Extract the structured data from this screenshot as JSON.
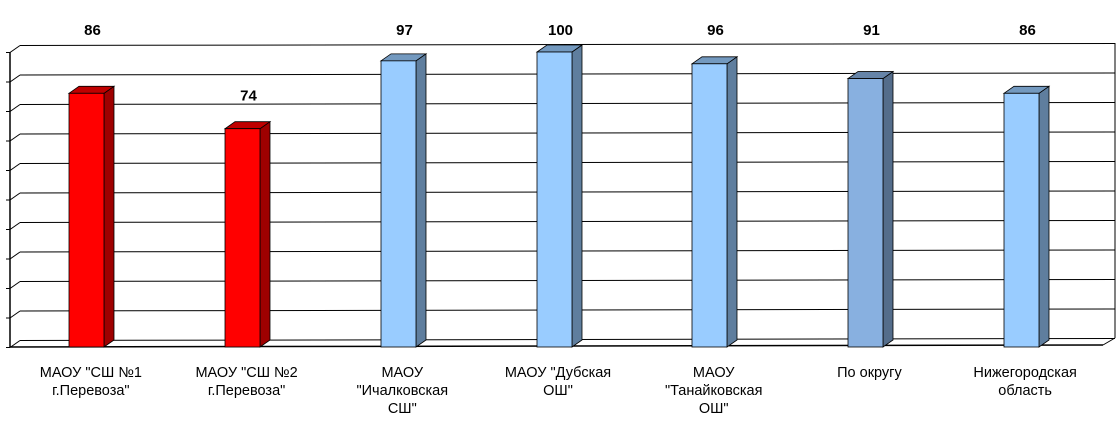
{
  "chart_data": {
    "type": "bar",
    "categories": [
      [
        "МАОУ \"СШ №1",
        "г.Перевоза\""
      ],
      [
        "МАОУ \"СШ №2",
        "г.Перевоза\""
      ],
      [
        "МАОУ",
        "\"Ичалковская",
        "СШ\""
      ],
      [
        "МАОУ \"Дубская",
        "ОШ\""
      ],
      [
        "МАОУ",
        "\"Танайковская",
        "ОШ\""
      ],
      [
        "По округу"
      ],
      [
        "Нижегородская",
        "область"
      ]
    ],
    "values": [
      86,
      74,
      97,
      100,
      96,
      91,
      86
    ],
    "value_labels": [
      "86",
      "74",
      "97",
      "100",
      "96",
      "91",
      "86"
    ],
    "ylim": [
      0,
      100
    ],
    "grid": true,
    "colors": [
      "#ff0000",
      "#ff0000",
      "#99ccff",
      "#99ccff",
      "#99ccff",
      "#88b0e0",
      "#99ccff"
    ],
    "title": "",
    "xlabel": "",
    "ylabel": ""
  }
}
